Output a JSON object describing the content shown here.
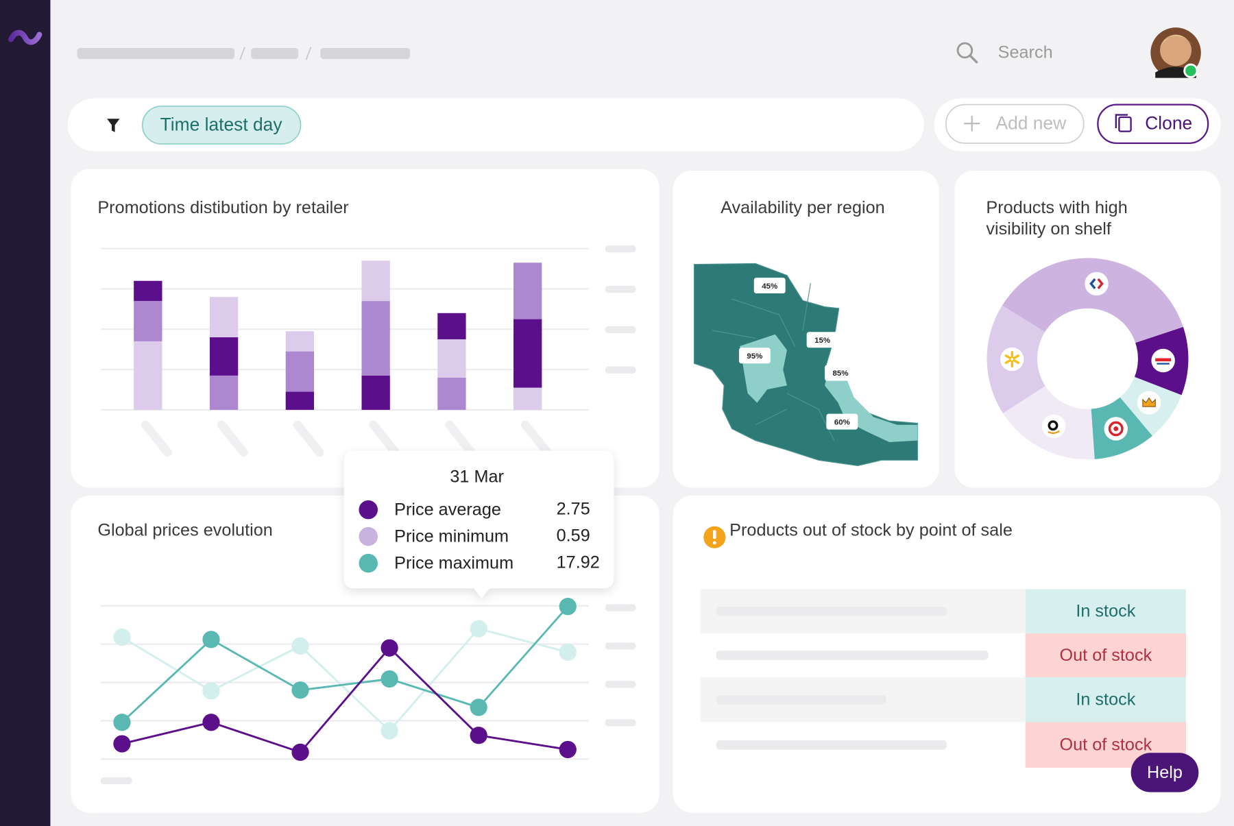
{
  "search": {
    "placeholder": "Search"
  },
  "filter": {
    "chip": "Time latest day"
  },
  "actions": {
    "add": "Add new",
    "clone": "Clone"
  },
  "chart_data": [
    {
      "type": "bar",
      "stacked": true,
      "title": "Promotions distibution by retailer",
      "categories": [
        null,
        null,
        null,
        null,
        null,
        null
      ],
      "series": [
        {
          "colors": [
            "#dccbea",
            "#ad88d0",
            "#5c0f8b",
            "#5c0f8b",
            "#ad88d0",
            "#dccbea"
          ],
          "values": [
            1.7,
            0.85,
            0.45,
            0.85,
            0.8,
            0.55
          ]
        },
        {
          "colors": [
            "#ad88d0",
            "#5c0f8b",
            "#ad88d0",
            "#ad88d0",
            "#dccbea",
            "#5c0f8b"
          ],
          "values": [
            1.0,
            0.95,
            1.0,
            1.85,
            0.95,
            1.7
          ]
        },
        {
          "colors": [
            "#5c0f8b",
            "#dccbea",
            "#dccbea",
            "#dccbea",
            "#5c0f8b",
            "#ad88d0"
          ],
          "values": [
            0.5,
            1.0,
            0.5,
            1.0,
            0.65,
            1.4
          ]
        }
      ],
      "ylim": [
        0,
        4
      ],
      "yticks": [
        0,
        1,
        2,
        3,
        4
      ],
      "grid": true
    },
    {
      "type": "line",
      "title": "Global prices evolution",
      "categories": [
        null,
        null,
        null,
        null,
        null,
        null
      ],
      "series": [
        {
          "name": "Price average",
          "color": "#5c0f8b",
          "values": [
            0.4,
            0.96,
            0.18,
            2.9,
            0.62,
            0.25
          ]
        },
        {
          "name": "Price minimum",
          "color": "#d2eeed",
          "values": [
            3.18,
            1.78,
            2.95,
            0.74,
            3.4,
            2.79
          ]
        },
        {
          "name": "Price maximum",
          "color": "#5ab8b3",
          "values": [
            0.96,
            3.12,
            1.8,
            2.09,
            1.35,
            3.98
          ]
        }
      ],
      "ylim": [
        0,
        4
      ],
      "yticks": [
        0,
        1,
        2,
        3,
        4
      ],
      "grid": true,
      "tooltip": {
        "category": "31 Mar",
        "values": [
          2.75,
          0.59,
          17.92
        ],
        "colors": [
          "#5c0f8b",
          "#c8b2de",
          "#5ab8b3"
        ]
      }
    },
    {
      "type": "pie",
      "donut": true,
      "title": "Products with high visibility on shelf",
      "values": [
        36,
        11,
        8,
        10,
        17,
        18
      ],
      "colors": [
        "#cdb3e0",
        "#5c0f8b",
        "#d7efee",
        "#5ab8b3",
        "#efeaf5",
        "#dccbea"
      ]
    }
  ],
  "availability": {
    "title": "Availability per region",
    "regions": [
      "45%",
      "15%",
      "95%",
      "85%",
      "60%"
    ]
  },
  "stock": {
    "title": "Products out of stock by point of sale",
    "statuses": [
      "In stock",
      "Out of stock",
      "In stock",
      "Out of stock"
    ]
  },
  "help": "Help"
}
